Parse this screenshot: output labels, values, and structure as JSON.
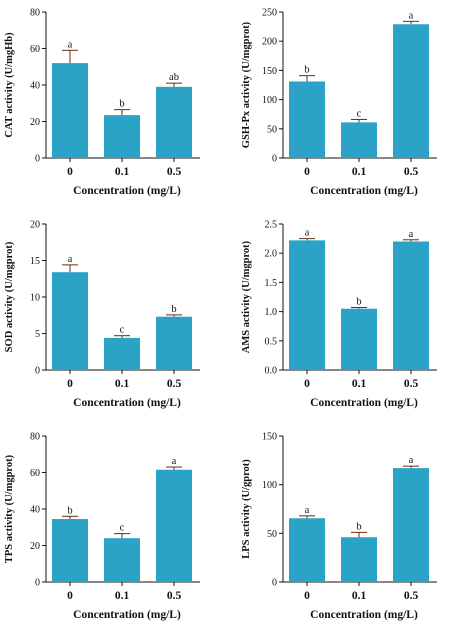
{
  "chart_data": [
    {
      "type": "bar",
      "categories": [
        "0",
        "0.1",
        "0.5"
      ],
      "values": [
        52,
        23.5,
        39
      ],
      "errors": [
        7,
        3,
        2
      ],
      "letters": [
        "a",
        "b",
        "ab"
      ],
      "ylabel": "CAT activity  (U/mgHb)",
      "xlabel": "Concentration (mg/L)",
      "ylim": [
        0,
        80
      ],
      "yticks": [
        "0",
        "20",
        "40",
        "60",
        "80"
      ],
      "bar_color": "#2aa3c6"
    },
    {
      "type": "bar",
      "categories": [
        "0",
        "0.1",
        "0.5"
      ],
      "values": [
        131,
        61,
        229
      ],
      "errors": [
        10,
        5,
        5
      ],
      "letters": [
        "b",
        "c",
        "a"
      ],
      "ylabel": "GSH-Px activity  (U/mgprot)",
      "xlabel": "Concentration (mg/L)",
      "ylim": [
        0,
        250
      ],
      "yticks": [
        "0",
        "50",
        "100",
        "150",
        "200",
        "250"
      ],
      "bar_color": "#2aa3c6"
    },
    {
      "type": "bar",
      "categories": [
        "0",
        "0.1",
        "0.5"
      ],
      "values": [
        13.4,
        4.4,
        7.3
      ],
      "errors": [
        1.0,
        0.3,
        0.25
      ],
      "letters": [
        "a",
        "c",
        "b"
      ],
      "ylabel": "SOD activity  (U/mgprot)",
      "xlabel": "Concentration (mg/L)",
      "ylim": [
        0,
        20
      ],
      "yticks": [
        "0",
        "5",
        "10",
        "15",
        "20"
      ],
      "bar_color": "#2aa3c6"
    },
    {
      "type": "bar",
      "categories": [
        "0",
        "0.1",
        "0.5"
      ],
      "values": [
        2.22,
        1.05,
        2.2
      ],
      "errors": [
        0.03,
        0.02,
        0.03
      ],
      "letters": [
        "a",
        "b",
        "a"
      ],
      "ylabel": "AMS activity  (U/mgprot)",
      "xlabel": "Concentration (mg/L)",
      "ylim": [
        0,
        2.5
      ],
      "yticks": [
        "0.0",
        "0.5",
        "1.0",
        "1.5",
        "2.0",
        "2.5"
      ],
      "bar_color": "#2aa3c6"
    },
    {
      "type": "bar",
      "categories": [
        "0",
        "0.1",
        "0.5"
      ],
      "values": [
        34.5,
        24,
        61.5
      ],
      "errors": [
        1.5,
        2.5,
        1.5
      ],
      "letters": [
        "b",
        "c",
        "a"
      ],
      "ylabel": "TPS activity  (U/mgprot)",
      "xlabel": "Concentration (mg/L)",
      "ylim": [
        0,
        80
      ],
      "yticks": [
        "0",
        "20",
        "40",
        "60",
        "80"
      ],
      "bar_color": "#2aa3c6"
    },
    {
      "type": "bar",
      "categories": [
        "0",
        "0.1",
        "0.5"
      ],
      "values": [
        65.5,
        46,
        117
      ],
      "errors": [
        2.5,
        5,
        2
      ],
      "letters": [
        "a",
        "b",
        "a"
      ],
      "ylabel": "LPS activity  (U/gprot)",
      "xlabel": "Concentration (mg/L)",
      "ylim": [
        0,
        150
      ],
      "yticks": [
        "0",
        "50",
        "100",
        "150"
      ],
      "bar_color": "#2aa3c6"
    }
  ]
}
